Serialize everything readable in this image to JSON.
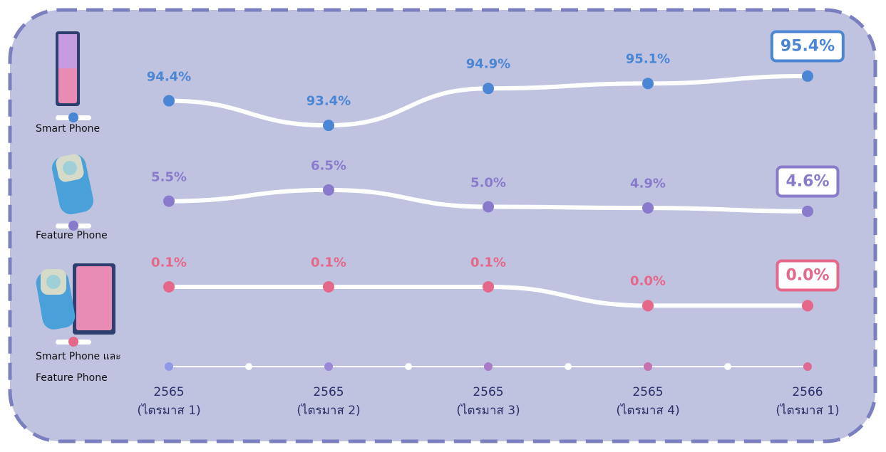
{
  "chart_data": {
    "type": "line",
    "categories": [
      "2565\n(ไตรมาส 1)",
      "2565\n(ไตรมาส 2)",
      "2565\n(ไตรมาส 3)",
      "2565\n(ไตรมาส 4)",
      "2566\n(ไตรมาส 1)"
    ],
    "series": [
      {
        "name": "Smart Phone",
        "color": "#4a86d4",
        "values": [
          94.4,
          93.4,
          94.9,
          95.1,
          95.4
        ],
        "value_labels": [
          "94.4%",
          "93.4%",
          "94.9%",
          "95.1%",
          "95.4%"
        ],
        "ylim": [
          93.0,
          95.6
        ]
      },
      {
        "name": "Feature Phone",
        "color": "#8a7acc",
        "values": [
          5.5,
          6.5,
          5.0,
          4.9,
          4.6
        ],
        "value_labels": [
          "5.5%",
          "6.5%",
          "5.0%",
          "4.9%",
          "4.6%"
        ],
        "ylim": [
          2.5,
          8.2
        ]
      },
      {
        "name": "Smart Phone และ\nFeature Phone",
        "color": "#e5678a",
        "values": [
          0.1,
          0.1,
          0.1,
          0.0,
          0.0
        ],
        "value_labels": [
          "0.1%",
          "0.1%",
          "0.1%",
          "0.0%",
          "0.0%"
        ],
        "ylim": [
          -0.04,
          0.13
        ]
      }
    ]
  }
}
